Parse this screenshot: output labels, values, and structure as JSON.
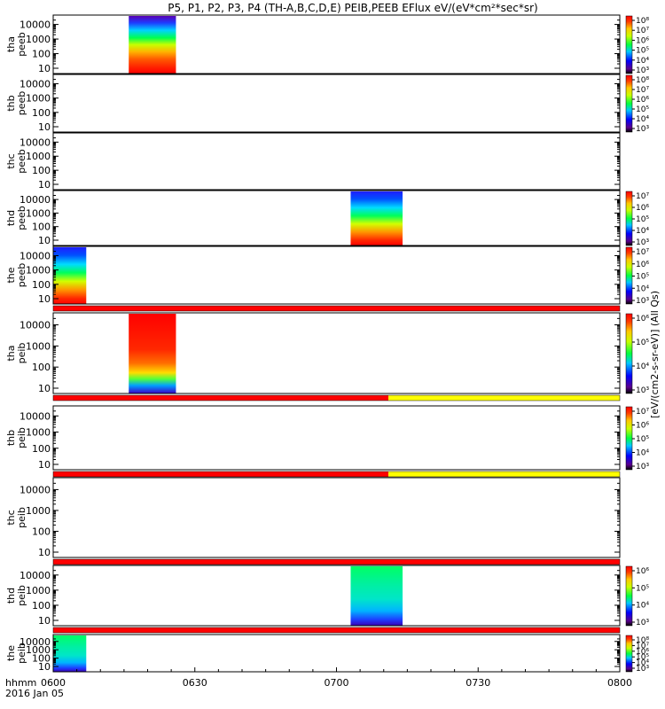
{
  "chart_data": {
    "type": "heatmap",
    "title": "P5, P1, P2, P3, P4 (TH-A,B,C,D,E) PEIB,PEEB EFlux eV/(eV*cm²*sec*sr)",
    "x_ticks": [
      "0600",
      "0630",
      "0700",
      "0730",
      "0800"
    ],
    "x_corner_label": "hhmm",
    "date_label": "2016 Jan 05",
    "x_range_minutes": [
      0,
      120
    ],
    "y_scale": "log",
    "y_ticks": [
      "10",
      "100",
      "1000",
      "10000"
    ],
    "colorbar_unit_left": "[eV/(cm2-s-sr-eV)]",
    "colorbar_unit_right": "(All Qs)",
    "colorbar_unit_combined": "[eV/(cm2-s-sr-eV)] (All Qs)",
    "panels": [
      {
        "id": "tha_peeb",
        "label_top": "tha",
        "label_bot": "peeb",
        "blocks": [
          {
            "t0": 16,
            "t1": 26,
            "scheme": "redlow"
          }
        ],
        "colorbar": {
          "ticks": [
            "10⁸",
            "10⁷",
            "10⁶",
            "10⁵",
            "10⁴",
            "10³"
          ]
        }
      },
      {
        "id": "thb_peeb",
        "label_top": "thb",
        "label_bot": "peeb",
        "blocks": [],
        "colorbar": {
          "ticks": [
            "10⁸",
            "10⁷",
            "10⁶",
            "10⁵",
            "10⁴",
            "10³"
          ]
        }
      },
      {
        "id": "thc_peeb",
        "label_top": "thc",
        "label_bot": "peeb",
        "blocks": [],
        "colorbar": null
      },
      {
        "id": "thd_peeb",
        "label_top": "thd",
        "label_bot": "peeb",
        "blocks": [
          {
            "t0": 63,
            "t1": 74,
            "scheme": "bluetop"
          }
        ],
        "colorbar": {
          "ticks": [
            "10⁷",
            "10⁶",
            "10⁵",
            "10⁴",
            "10³"
          ]
        }
      },
      {
        "id": "the_peeb",
        "label_top": "the",
        "label_bot": "peeb",
        "blocks": [
          {
            "t0": 0,
            "t1": 7,
            "scheme": "bluetop"
          }
        ],
        "colorbar": {
          "ticks": [
            "10⁷",
            "10⁶",
            "10⁵",
            "10⁴",
            "10³"
          ]
        },
        "flag_bar": [
          {
            "t0": 0,
            "t1": 120,
            "color": "#ff0000"
          }
        ]
      },
      {
        "id": "tha_peib",
        "label_top": "tha",
        "label_bot": "peib",
        "blocks": [
          {
            "t0": 16,
            "t1": 26,
            "scheme": "redtop"
          }
        ],
        "colorbar": {
          "ticks": [
            "10⁶",
            "10⁵",
            "10⁴",
            "10³"
          ]
        },
        "flag_bar": [
          {
            "t0": 0,
            "t1": 71,
            "color": "#ff0000"
          },
          {
            "t0": 71,
            "t1": 120,
            "color": "#ffff00"
          }
        ]
      },
      {
        "id": "thb_peib",
        "label_top": "thb",
        "label_bot": "peib",
        "blocks": [],
        "colorbar": {
          "ticks": [
            "10⁷",
            "10⁶",
            "10⁵",
            "10⁴",
            "10³"
          ]
        },
        "flag_bar": [
          {
            "t0": 0,
            "t1": 71,
            "color": "#ff0000"
          },
          {
            "t0": 71,
            "t1": 120,
            "color": "#ffff00"
          }
        ]
      },
      {
        "id": "thc_peib",
        "label_top": "thc",
        "label_bot": "peib",
        "blocks": [],
        "colorbar": null,
        "flag_bar": [
          {
            "t0": 0,
            "t1": 120,
            "color": "#ff0000"
          }
        ]
      },
      {
        "id": "thd_peib",
        "label_top": "thd",
        "label_bot": "peib",
        "blocks": [
          {
            "t0": 63,
            "t1": 74,
            "scheme": "greentop"
          }
        ],
        "colorbar": {
          "ticks": [
            "10⁶",
            "10⁵",
            "10⁴",
            "10³"
          ]
        },
        "flag_bar": [
          {
            "t0": 0,
            "t1": 120,
            "color": "#ff0000"
          }
        ]
      },
      {
        "id": "the_peib",
        "label_top": "the",
        "label_bot": "peib",
        "blocks": [
          {
            "t0": 0,
            "t1": 7,
            "scheme": "greentop"
          }
        ],
        "colorbar": {
          "ticks": [
            "10⁸",
            "10⁷",
            "10⁶",
            "10⁵",
            "10⁴",
            "10³"
          ]
        }
      }
    ]
  }
}
